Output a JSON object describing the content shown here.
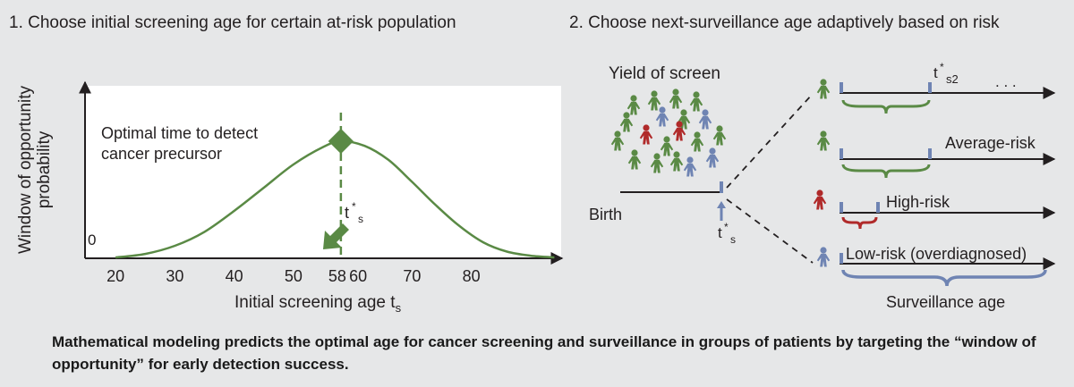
{
  "panel1": {
    "heading": "1. Choose initial screening age for certain at-risk population",
    "ylabel_line1": "Window of opportunity",
    "ylabel_line2": "probability",
    "zero_label": "0",
    "xlabel_main": "Initial screening age t",
    "xlabel_sub": "s",
    "ticks": [
      "20",
      "30",
      "40",
      "50",
      "58",
      "60",
      "70",
      "80"
    ],
    "annotation_line1": "Optimal time to detect",
    "annotation_line2": "cancer precursor",
    "tstar_main": "t",
    "tstar_sup": "*",
    "tstar_sub": "s"
  },
  "panel2": {
    "heading": "2. Choose next-surveillance age adaptively based on risk",
    "yield_label": "Yield of screen",
    "birth_label": "Birth",
    "tstar_main": "t",
    "tstar_sup": "*",
    "tstar_sub": "s",
    "tstar2_main": "t",
    "tstar2_sup": "*",
    "tstar2_sub": "s2",
    "ellipsis": ". . .",
    "average_risk": "Average-risk",
    "high_risk": "High-risk",
    "low_risk": "Low-risk  (overdiagnosed)",
    "surveillance_age": "Surveillance age"
  },
  "caption": "Mathematical modeling predicts the optimal age for cancer screening and surveillance in groups of patients by targeting the “window of opportunity” for early detection success.",
  "colors": {
    "background": "#e6e7e8",
    "green": "#5a8a45",
    "red": "#b02a2a",
    "blue": "#6f84b3",
    "plot_bg": "#ffffff",
    "text": "#231f20"
  },
  "chart_data": {
    "type": "line",
    "title": "Choose initial screening age for certain at-risk population",
    "xlabel": "Initial screening age t_s",
    "ylabel": "Window of opportunity probability",
    "x_ticks": [
      20,
      30,
      40,
      50,
      58,
      60,
      70,
      80
    ],
    "xlim": [
      15,
      95
    ],
    "ylim": [
      0,
      1
    ],
    "grid": false,
    "series": [
      {
        "name": "window of opportunity",
        "x": [
          20,
          25,
          30,
          35,
          40,
          45,
          50,
          55,
          58,
          62,
          66,
          70,
          74,
          78,
          82,
          86,
          90,
          94
        ],
        "y": [
          0.0,
          0.03,
          0.1,
          0.22,
          0.4,
          0.6,
          0.8,
          0.95,
          1.0,
          0.96,
          0.84,
          0.65,
          0.45,
          0.27,
          0.13,
          0.05,
          0.015,
          0.0
        ]
      }
    ],
    "optimum": {
      "x": 58,
      "y": 1.0,
      "label": "Optimal time to detect cancer precursor"
    }
  }
}
